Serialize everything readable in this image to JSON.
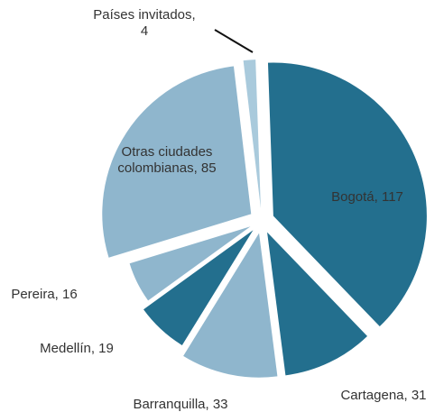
{
  "chart_data": {
    "type": "pie",
    "categories": [
      "Bogotá, 117",
      "Cartagena, 31",
      "Barranquilla, 33",
      "Medellín, 19",
      "Pereira, 16",
      "Otras ciudades\ncolombianas, 85",
      "Países invitados,\n4"
    ],
    "values": [
      117,
      31,
      33,
      19,
      16,
      85,
      4
    ],
    "colors": [
      "#236f8e",
      "#236f8e",
      "#8fb6cd",
      "#236f8e",
      "#8fb6cd",
      "#8fb6cd",
      "#a9cadc"
    ]
  }
}
